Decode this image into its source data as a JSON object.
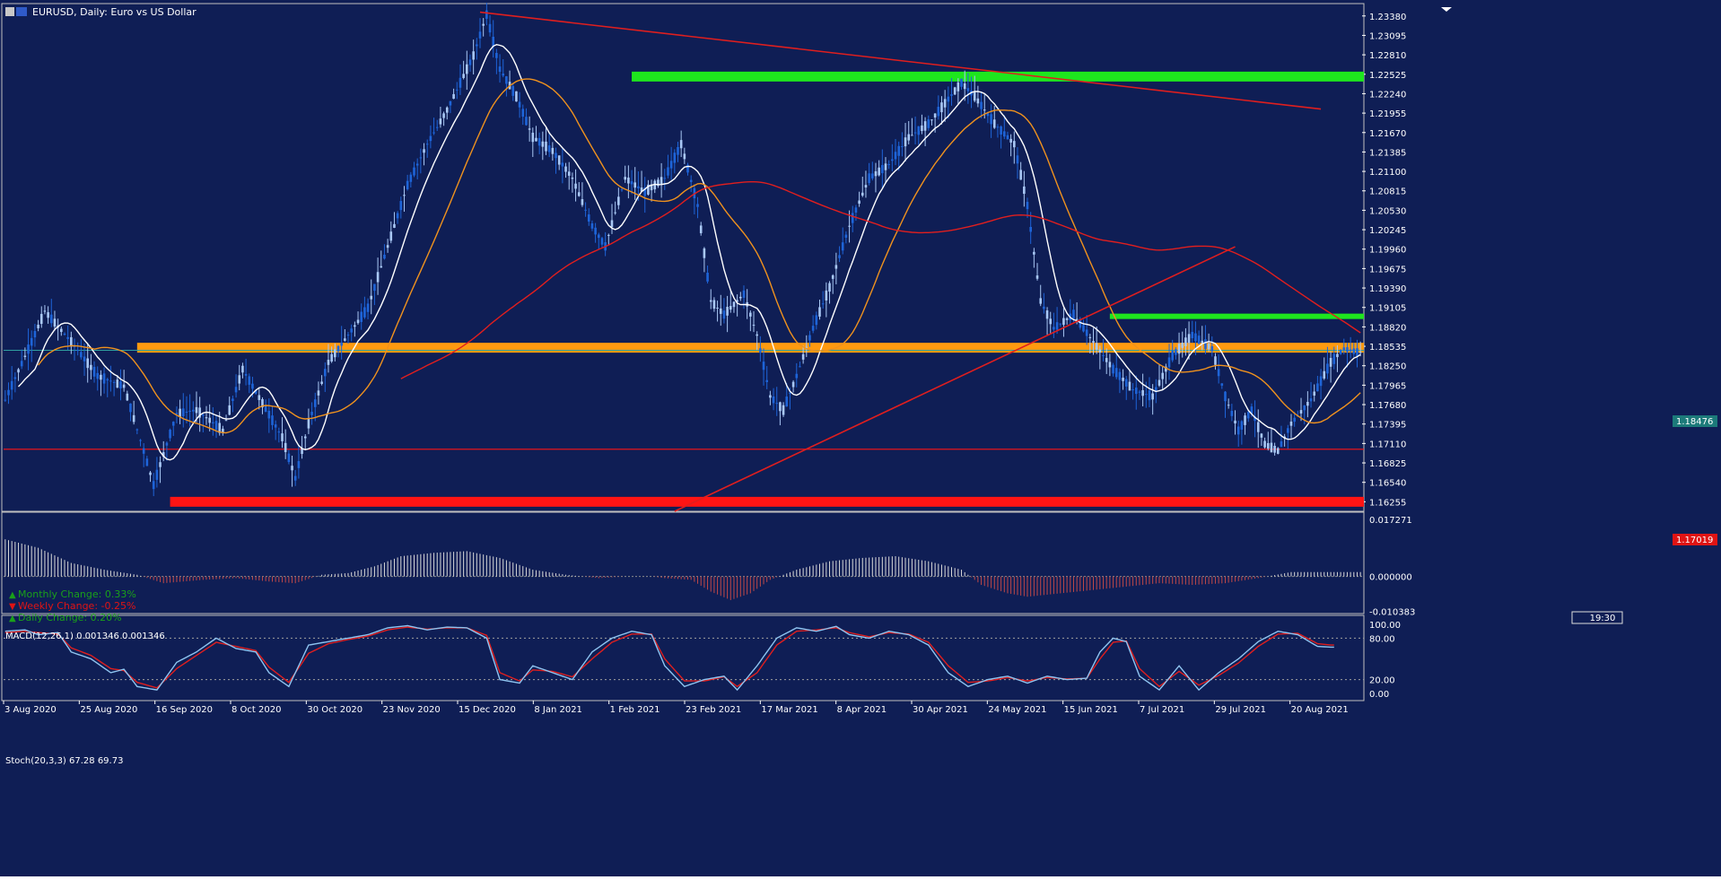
{
  "window": {
    "symbol_title": "EURUSD, Daily:  Euro vs US Dollar"
  },
  "colors": {
    "background": "#0f1e55",
    "bull_candle": "#a9c8f5",
    "bear_candle": "#1e64d8",
    "ma_fast": "#ffffff",
    "ma_mid": "#f0921e",
    "ma_slow": "#e11e1e",
    "resistance_band": "#1ee61e",
    "pivot_band": "#ff9a10",
    "support_band": "#ff1414",
    "trendline": "#e01e1e",
    "price_tag": "#1c7a7a",
    "text": "#ffffff"
  },
  "stats": {
    "monthly_change": "Monthly Change: 0.33%",
    "weekly_change": "Weekly Change: -0.25%",
    "daily_change": "Daily Change: 0.20%"
  },
  "candle_timer": "19:30",
  "chart_data": [
    {
      "panel": "price",
      "type": "candlestick",
      "y_ticks": [
        "1.23380",
        "1.23095",
        "1.22810",
        "1.22525",
        "1.22240",
        "1.21955",
        "1.21670",
        "1.21385",
        "1.21100",
        "1.20815",
        "1.20530",
        "1.20245",
        "1.19960",
        "1.19675",
        "1.19390",
        "1.19105",
        "1.18820",
        "1.18535",
        "1.18250",
        "1.17965",
        "1.17680",
        "1.17395",
        "1.17110",
        "1.16825",
        "1.16540",
        "1.16255"
      ],
      "ylim": [
        1.16115,
        1.23535
      ],
      "x_ticks": [
        "3 Aug 2020",
        "25 Aug 2020",
        "16 Sep 2020",
        "8 Oct 2020",
        "30 Oct 2020",
        "23 Nov 2020",
        "15 Dec 2020",
        "8 Jan 2021",
        "1 Feb 2021",
        "23 Feb 2021",
        "17 Mar 2021",
        "8 Apr 2021",
        "30 Apr 2021",
        "24 May 2021",
        "15 Jun 2021",
        "7 Jul 2021",
        "29 Jul 2021",
        "20 Aug 2021"
      ],
      "bar_count": 282,
      "price_path": [
        [
          0,
          1.1775
        ],
        [
          8,
          1.186
        ],
        [
          12,
          1.1905
        ],
        [
          20,
          1.186
        ],
        [
          28,
          1.181
        ],
        [
          36,
          1.1795
        ],
        [
          42,
          1.17
        ],
        [
          45,
          1.165
        ],
        [
          52,
          1.1755
        ],
        [
          58,
          1.176
        ],
        [
          66,
          1.173
        ],
        [
          72,
          1.182
        ],
        [
          78,
          1.177
        ],
        [
          84,
          1.172
        ],
        [
          88,
          1.166
        ],
        [
          92,
          1.174
        ],
        [
          98,
          1.183
        ],
        [
          104,
          1.187
        ],
        [
          110,
          1.191
        ],
        [
          116,
          1.2
        ],
        [
          122,
          1.209
        ],
        [
          128,
          1.215
        ],
        [
          134,
          1.22
        ],
        [
          138,
          1.224
        ],
        [
          142,
          1.228
        ],
        [
          146,
          1.234
        ],
        [
          150,
          1.226
        ],
        [
          155,
          1.222
        ],
        [
          160,
          1.216
        ],
        [
          166,
          1.214
        ],
        [
          172,
          1.21
        ],
        [
          178,
          1.203
        ],
        [
          182,
          1.2
        ],
        [
          188,
          1.21
        ],
        [
          194,
          1.208
        ],
        [
          200,
          1.21
        ],
        [
          205,
          1.215
        ],
        [
          210,
          1.206
        ],
        [
          214,
          1.192
        ],
        [
          218,
          1.19
        ],
        [
          224,
          1.193
        ],
        [
          228,
          1.187
        ],
        [
          232,
          1.178
        ],
        [
          236,
          1.176
        ],
        [
          240,
          1.181
        ],
        [
          245,
          1.188
        ],
        [
          250,
          1.194
        ],
        [
          256,
          1.203
        ],
        [
          262,
          1.21
        ],
        [
          268,
          1.212
        ],
        [
          274,
          1.216
        ],
        [
          280,
          1.218
        ],
        [
          285,
          1.221
        ],
        [
          290,
          1.224
        ],
        [
          294,
          1.222
        ],
        [
          300,
          1.218
        ],
        [
          306,
          1.215
        ],
        [
          310,
          1.206
        ],
        [
          314,
          1.192
        ],
        [
          318,
          1.188
        ],
        [
          324,
          1.19
        ],
        [
          330,
          1.186
        ],
        [
          336,
          1.182
        ],
        [
          342,
          1.179
        ],
        [
          348,
          1.178
        ],
        [
          354,
          1.184
        ],
        [
          360,
          1.187
        ],
        [
          366,
          1.185
        ],
        [
          370,
          1.178
        ],
        [
          374,
          1.173
        ],
        [
          378,
          1.176
        ],
        [
          382,
          1.171
        ],
        [
          386,
          1.17
        ],
        [
          390,
          1.174
        ],
        [
          396,
          1.1775
        ],
        [
          402,
          1.183
        ],
        [
          406,
          1.185
        ],
        [
          410,
          1.1845
        ]
      ],
      "indicators": {
        "ma_fast": "white",
        "ma_mid": "orange",
        "ma_slow": "red"
      },
      "levels": [
        {
          "name": "resistance-upper",
          "price": 1.2249,
          "from_bar": 190,
          "to_bar": 412,
          "color": "green"
        },
        {
          "name": "resistance-lower",
          "price": 1.18975,
          "from_bar": 335,
          "to_bar": 412,
          "color": "green"
        },
        {
          "name": "pivot",
          "price": 1.18515,
          "from_bar": 40,
          "to_bar": 412,
          "color": "orange"
        },
        {
          "name": "support",
          "price": 1.16255,
          "from_bar": 50,
          "to_bar": 412,
          "color": "red"
        },
        {
          "name": "horizontal-line",
          "price": 1.17025,
          "from_bar": 0,
          "to_bar": 412,
          "color": "red"
        }
      ],
      "trendlines": [
        {
          "name": "downtrend-line",
          "from": [
            144,
            1.23435
          ],
          "to": [
            399,
            1.22015
          ]
        },
        {
          "name": "uptrend-line",
          "from": [
            203,
            1.16115
          ],
          "to": [
            373,
            1.19995
          ]
        }
      ],
      "current_price": "1.18476",
      "current_price_value": 1.18476,
      "horizontal_line_label": "1.17019",
      "horizontal_line_value": 1.17019
    },
    {
      "panel": "macd",
      "type": "histogram",
      "title": "MACD(12,26,1) 0.001346 0.001346",
      "y_ticks": [
        "0.017271",
        "0.000000",
        "-0.010383"
      ],
      "ylim": [
        -0.011,
        0.0185
      ],
      "values_path": [
        [
          0,
          0.011
        ],
        [
          10,
          0.0085
        ],
        [
          20,
          0.004
        ],
        [
          30,
          0.002
        ],
        [
          40,
          0.0005
        ],
        [
          48,
          -0.002
        ],
        [
          60,
          -0.001
        ],
        [
          70,
          -0.0005
        ],
        [
          80,
          -0.0015
        ],
        [
          88,
          -0.002
        ],
        [
          96,
          0.0005
        ],
        [
          104,
          0.001
        ],
        [
          112,
          0.003
        ],
        [
          120,
          0.006
        ],
        [
          130,
          0.007
        ],
        [
          140,
          0.0075
        ],
        [
          150,
          0.0055
        ],
        [
          160,
          0.002
        ],
        [
          170,
          0.0005
        ],
        [
          180,
          -0.0005
        ],
        [
          188,
          0.0
        ],
        [
          196,
          0.0
        ],
        [
          200,
          -0.0005
        ],
        [
          208,
          -0.001
        ],
        [
          214,
          -0.0045
        ],
        [
          220,
          -0.007
        ],
        [
          226,
          -0.005
        ],
        [
          232,
          -0.001
        ],
        [
          240,
          0.002
        ],
        [
          250,
          0.0045
        ],
        [
          260,
          0.0055
        ],
        [
          270,
          0.006
        ],
        [
          280,
          0.0045
        ],
        [
          290,
          0.002
        ],
        [
          296,
          -0.0025
        ],
        [
          304,
          -0.005
        ],
        [
          310,
          -0.006
        ],
        [
          320,
          -0.005
        ],
        [
          330,
          -0.004
        ],
        [
          340,
          -0.003
        ],
        [
          350,
          -0.002
        ],
        [
          360,
          -0.0025
        ],
        [
          370,
          -0.002
        ],
        [
          380,
          -0.0005
        ],
        [
          390,
          0.0013
        ]
      ]
    },
    {
      "panel": "stochastic",
      "type": "line",
      "title": "Stoch(20,3,3) 67.28 69.73",
      "y_ticks": [
        "100.00",
        "80.00",
        "20.00",
        "0.00"
      ],
      "ylim": [
        0,
        100
      ],
      "levels": [
        80,
        20
      ],
      "k_path": [
        [
          0,
          90
        ],
        [
          6,
          92
        ],
        [
          10,
          85
        ],
        [
          16,
          88
        ],
        [
          20,
          60
        ],
        [
          26,
          50
        ],
        [
          32,
          30
        ],
        [
          36,
          35
        ],
        [
          40,
          10
        ],
        [
          46,
          5
        ],
        [
          52,
          45
        ],
        [
          58,
          60
        ],
        [
          64,
          80
        ],
        [
          70,
          65
        ],
        [
          76,
          60
        ],
        [
          80,
          30
        ],
        [
          86,
          10
        ],
        [
          92,
          70
        ],
        [
          98,
          75
        ],
        [
          104,
          80
        ],
        [
          110,
          85
        ],
        [
          116,
          95
        ],
        [
          122,
          98
        ],
        [
          128,
          92
        ],
        [
          134,
          96
        ],
        [
          140,
          95
        ],
        [
          146,
          80
        ],
        [
          150,
          20
        ],
        [
          156,
          15
        ],
        [
          160,
          40
        ],
        [
          166,
          30
        ],
        [
          172,
          20
        ],
        [
          178,
          60
        ],
        [
          184,
          80
        ],
        [
          190,
          90
        ],
        [
          196,
          85
        ],
        [
          200,
          40
        ],
        [
          206,
          10
        ],
        [
          212,
          20
        ],
        [
          218,
          25
        ],
        [
          222,
          5
        ],
        [
          228,
          40
        ],
        [
          234,
          80
        ],
        [
          240,
          95
        ],
        [
          246,
          90
        ],
        [
          252,
          97
        ],
        [
          256,
          85
        ],
        [
          262,
          80
        ],
        [
          268,
          90
        ],
        [
          274,
          85
        ],
        [
          280,
          70
        ],
        [
          286,
          30
        ],
        [
          292,
          10
        ],
        [
          298,
          20
        ],
        [
          304,
          25
        ],
        [
          310,
          15
        ],
        [
          316,
          25
        ],
        [
          322,
          20
        ],
        [
          328,
          22
        ],
        [
          332,
          60
        ],
        [
          336,
          80
        ],
        [
          340,
          75
        ],
        [
          344,
          25
        ],
        [
          350,
          5
        ],
        [
          356,
          40
        ],
        [
          362,
          5
        ],
        [
          368,
          30
        ],
        [
          374,
          50
        ],
        [
          380,
          75
        ],
        [
          386,
          90
        ],
        [
          392,
          85
        ],
        [
          398,
          68
        ],
        [
          402,
          67
        ]
      ],
      "d_path": [
        [
          0,
          88
        ],
        [
          6,
          90
        ],
        [
          10,
          88
        ],
        [
          16,
          86
        ],
        [
          20,
          66
        ],
        [
          26,
          55
        ],
        [
          32,
          36
        ],
        [
          36,
          33
        ],
        [
          40,
          16
        ],
        [
          46,
          8
        ],
        [
          52,
          36
        ],
        [
          58,
          55
        ],
        [
          64,
          74
        ],
        [
          70,
          68
        ],
        [
          76,
          62
        ],
        [
          80,
          38
        ],
        [
          86,
          16
        ],
        [
          92,
          58
        ],
        [
          98,
          72
        ],
        [
          104,
          78
        ],
        [
          110,
          83
        ],
        [
          116,
          92
        ],
        [
          122,
          96
        ],
        [
          128,
          93
        ],
        [
          134,
          95
        ],
        [
          140,
          95
        ],
        [
          146,
          84
        ],
        [
          150,
          30
        ],
        [
          156,
          18
        ],
        [
          160,
          34
        ],
        [
          166,
          32
        ],
        [
          172,
          24
        ],
        [
          178,
          50
        ],
        [
          184,
          74
        ],
        [
          190,
          86
        ],
        [
          196,
          86
        ],
        [
          200,
          50
        ],
        [
          206,
          18
        ],
        [
          212,
          18
        ],
        [
          218,
          24
        ],
        [
          222,
          10
        ],
        [
          228,
          30
        ],
        [
          234,
          70
        ],
        [
          240,
          90
        ],
        [
          246,
          92
        ],
        [
          252,
          95
        ],
        [
          256,
          88
        ],
        [
          262,
          82
        ],
        [
          268,
          88
        ],
        [
          274,
          86
        ],
        [
          280,
          74
        ],
        [
          286,
          40
        ],
        [
          292,
          16
        ],
        [
          298,
          18
        ],
        [
          304,
          23
        ],
        [
          310,
          18
        ],
        [
          316,
          23
        ],
        [
          322,
          21
        ],
        [
          328,
          22
        ],
        [
          332,
          50
        ],
        [
          336,
          74
        ],
        [
          340,
          76
        ],
        [
          344,
          36
        ],
        [
          350,
          10
        ],
        [
          356,
          32
        ],
        [
          362,
          12
        ],
        [
          368,
          26
        ],
        [
          374,
          44
        ],
        [
          380,
          68
        ],
        [
          386,
          86
        ],
        [
          392,
          87
        ],
        [
          398,
          72
        ],
        [
          402,
          70
        ]
      ]
    }
  ]
}
